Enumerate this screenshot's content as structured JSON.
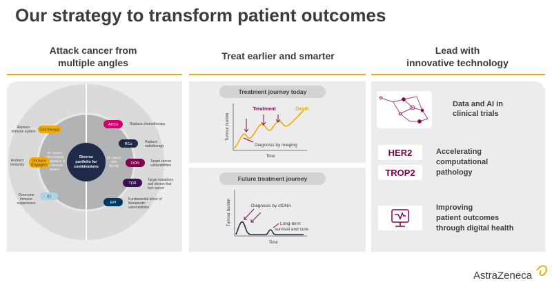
{
  "title": "Our strategy to transform patient outcomes",
  "columns": [
    {
      "heading": [
        "Attack cancer from",
        "multiple angles"
      ],
      "diagram": {
        "center": [
          "Diverse",
          "portfolio for",
          "combinations"
        ],
        "left_inner": [
          "IO: cancer",
          "cell-mediated",
          "manipulation of",
          "the immune",
          "system"
        ],
        "right_inner": [
          "IO: cancer",
          "cells",
          "directly"
        ],
        "left_items": [
          {
            "pill": "Cell therapy",
            "label": [
              "Replace",
              "immune system"
            ]
          },
          {
            "pill": [
              "Immune",
              "Engagers"
            ],
            "label": [
              "Redirect",
              "immunity"
            ]
          },
          {
            "pill": "IO",
            "label": [
              "Overcome",
              "immune",
              "suppression"
            ]
          }
        ],
        "right_items": [
          {
            "pill": "ADCs",
            "label": [
              "Replace chemotherapy"
            ]
          },
          {
            "pill": "RCs",
            "label": [
              "Replace",
              "radiotherapy"
            ]
          },
          {
            "pill": "DDR",
            "label": [
              "Target cancer",
              "vulnerabilities"
            ]
          },
          {
            "pill": "TDR",
            "label": [
              "Target mutations",
              "and drivers that",
              "fuel cancer"
            ]
          },
          {
            "pill": "EPI",
            "label": [
              "Fundamental driver of",
              "therapeutic",
              "vulnerabilities"
            ]
          }
        ]
      }
    },
    {
      "heading": [
        "Treat earlier and smarter"
      ],
      "panels": [
        {
          "title": "Treatment journey today",
          "y_label": "Tumour burden",
          "x_label": "Time",
          "annotations": [
            "Treatment",
            "Death",
            "Diagnosis by imaging"
          ]
        },
        {
          "title": "Future treatment journey",
          "y_label": "Tumour burden",
          "x_label": "Time",
          "annotations": [
            "Diagnosis by ctDNA",
            "Long-term",
            "survival and cure"
          ]
        }
      ]
    },
    {
      "heading": [
        "Lead with",
        "innovative technology"
      ],
      "items": [
        {
          "text": [
            "Data and AI in",
            "clinical trials"
          ]
        },
        {
          "tags": [
            "HER2",
            "TROP2"
          ],
          "text": [
            "Accelerating",
            "computational",
            "pathology"
          ]
        },
        {
          "text": [
            "Improving",
            "patient outcomes",
            "through digital health"
          ]
        }
      ]
    }
  ],
  "footer": {
    "logo": "AstraZeneca"
  }
}
